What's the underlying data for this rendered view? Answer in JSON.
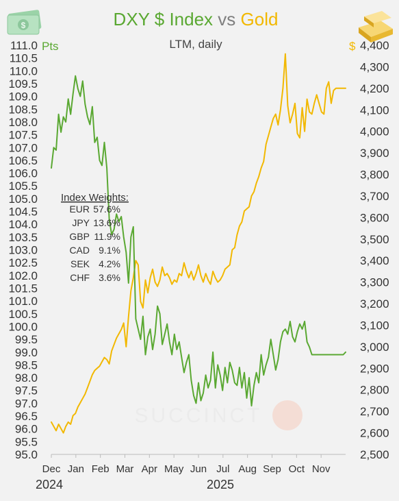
{
  "chart_data": {
    "type": "line",
    "title_parts": [
      {
        "text": "DXY $ Index",
        "color": "#5aa832"
      },
      {
        "text": " vs ",
        "color": "#7f7f7f"
      },
      {
        "text": "Gold",
        "color": "#f2b800"
      }
    ],
    "subtitle": "LTM, daily",
    "left_axis": {
      "unit_label": "Pts",
      "range": [
        95.0,
        111.0
      ],
      "ticks": [
        "95.0",
        "95.5",
        "96.0",
        "96.5",
        "97.0",
        "97.5",
        "98.0",
        "98.5",
        "99.0",
        "99.5",
        "100.0",
        "100.5",
        "101.0",
        "101.5",
        "102.0",
        "102.5",
        "103.0",
        "103.5",
        "104.0",
        "104.5",
        "105.0",
        "105.5",
        "106.0",
        "106.5",
        "107.0",
        "107.5",
        "108.0",
        "108.5",
        "109.0",
        "109.5",
        "110.0",
        "110.5",
        "111.0"
      ]
    },
    "right_axis": {
      "unit_label": "$",
      "range": [
        2500,
        4400
      ],
      "ticks": [
        "2,500",
        "2,600",
        "2,700",
        "2,800",
        "2,900",
        "3,000",
        "3,100",
        "3,200",
        "3,300",
        "3,400",
        "3,500",
        "3,600",
        "3,700",
        "3,800",
        "3,900",
        "4,000",
        "4,100",
        "4,200",
        "4,300",
        "4,400"
      ]
    },
    "x_axis": {
      "months": [
        "Dec",
        "Jan",
        "Feb",
        "Mar",
        "Apr",
        "May",
        "Jun",
        "Jul",
        "Aug",
        "Sep",
        "Oct",
        "Nov"
      ],
      "years": [
        "2024",
        "2025"
      ]
    },
    "series": [
      {
        "name": "DXY $ Index",
        "axis": "left",
        "color": "#5aa832",
        "x": [
          0,
          3,
          6,
          9,
          12,
          15,
          18,
          21,
          24,
          27,
          30,
          33,
          36,
          39,
          42,
          45,
          48,
          51,
          54,
          57,
          60,
          63,
          66,
          69,
          72,
          75,
          78,
          81,
          84,
          87,
          90,
          93,
          96,
          99,
          102,
          105,
          108,
          111,
          114,
          117,
          120,
          123,
          126,
          129,
          132,
          135,
          138,
          141,
          144,
          147,
          150,
          153,
          156,
          159,
          162,
          165,
          168,
          171,
          174,
          177,
          180,
          183,
          186,
          189,
          192,
          195,
          198,
          201,
          204,
          207,
          210,
          213,
          216,
          219,
          222,
          225,
          228,
          231,
          234,
          237,
          240,
          243,
          246,
          249,
          252,
          255,
          258,
          261,
          264,
          267,
          270,
          273,
          276,
          279,
          282,
          285,
          288,
          291,
          294,
          297,
          300,
          303,
          306,
          309,
          312,
          315,
          318,
          321,
          324,
          327,
          330,
          333,
          336,
          339,
          342,
          345,
          348,
          351,
          354,
          357,
          360,
          363,
          366
        ],
        "y": [
          106.2,
          107.0,
          106.9,
          108.3,
          107.6,
          108.2,
          108.0,
          108.9,
          108.3,
          109.1,
          109.8,
          109.3,
          109.0,
          109.6,
          108.7,
          108.2,
          107.9,
          108.6,
          107.2,
          107.4,
          106.5,
          106.3,
          107.2,
          106.2,
          104.2,
          103.6,
          103.8,
          104.4,
          104.1,
          104.3,
          103.5,
          102.9,
          101.7,
          103.5,
          103.9,
          100.3,
          99.9,
          99.5,
          100.4,
          98.9,
          99.6,
          99.9,
          99.1,
          99.7,
          100.8,
          100.5,
          99.3,
          99.7,
          100.1,
          99.4,
          98.9,
          99.7,
          99.1,
          99.4,
          98.8,
          98.2,
          98.6,
          98.9,
          97.9,
          97.3,
          97.0,
          97.8,
          97.1,
          97.4,
          98.1,
          97.6,
          97.9,
          99.0,
          97.6,
          98.5,
          98.1,
          97.5,
          98.4,
          97.8,
          98.6,
          98.3,
          97.8,
          97.7,
          98.4,
          97.6,
          98.2,
          97.2,
          98.0,
          96.9,
          97.7,
          98.2,
          97.8,
          98.9,
          98.1,
          98.5,
          98.8,
          99.5,
          98.9,
          98.3,
          98.7,
          99.4,
          99.8,
          99.9,
          99.7,
          100.2,
          99.6,
          99.4,
          99.8,
          100.1,
          99.9,
          100.2,
          99.4,
          99.2,
          98.9,
          98.9,
          98.9,
          98.9,
          98.9,
          98.9,
          98.9,
          98.9,
          98.9,
          98.9,
          98.9,
          98.9,
          98.9,
          98.9,
          99.0
        ]
      },
      {
        "name": "Gold",
        "axis": "right",
        "color": "#f2b800",
        "x": [
          0,
          3,
          6,
          9,
          12,
          15,
          18,
          21,
          24,
          27,
          30,
          33,
          36,
          39,
          42,
          45,
          48,
          51,
          54,
          57,
          60,
          63,
          66,
          69,
          72,
          75,
          78,
          81,
          84,
          87,
          90,
          93,
          96,
          99,
          102,
          105,
          108,
          111,
          114,
          117,
          120,
          123,
          126,
          129,
          132,
          135,
          138,
          141,
          144,
          147,
          150,
          153,
          156,
          159,
          162,
          165,
          168,
          171,
          174,
          177,
          180,
          183,
          186,
          189,
          192,
          195,
          198,
          201,
          204,
          207,
          210,
          213,
          216,
          219,
          222,
          225,
          228,
          231,
          234,
          237,
          240,
          243,
          246,
          249,
          252,
          255,
          258,
          261,
          264,
          267,
          270,
          273,
          276,
          279,
          282,
          285,
          288,
          291,
          294,
          297,
          300,
          303,
          306,
          309,
          312,
          315,
          318,
          321,
          324,
          327,
          330,
          333,
          336,
          339,
          342,
          345,
          348,
          351,
          354,
          357,
          360,
          363,
          366
        ],
        "y": [
          2650,
          2630,
          2610,
          2640,
          2620,
          2600,
          2630,
          2650,
          2640,
          2680,
          2690,
          2720,
          2740,
          2760,
          2780,
          2810,
          2840,
          2870,
          2890,
          2900,
          2910,
          2930,
          2950,
          2940,
          2920,
          2980,
          3010,
          3040,
          3060,
          3080,
          3110,
          3000,
          3140,
          3260,
          3320,
          3400,
          3380,
          3210,
          3180,
          3310,
          3250,
          3320,
          3360,
          3300,
          3280,
          3310,
          3370,
          3330,
          3340,
          3320,
          3290,
          3310,
          3300,
          3340,
          3330,
          3390,
          3350,
          3320,
          3350,
          3310,
          3340,
          3380,
          3330,
          3300,
          3340,
          3310,
          3290,
          3350,
          3320,
          3300,
          3310,
          3330,
          3360,
          3370,
          3380,
          3450,
          3460,
          3520,
          3560,
          3580,
          3630,
          3640,
          3650,
          3700,
          3720,
          3760,
          3790,
          3830,
          3860,
          3940,
          3980,
          4020,
          4060,
          4080,
          4030,
          4100,
          4200,
          4360,
          4120,
          4040,
          4080,
          4130,
          3990,
          3970,
          4110,
          4000,
          4150,
          4090,
          4080,
          4130,
          4170,
          4130,
          4090,
          4080,
          4200,
          4230,
          4130,
          4190,
          4200,
          4200,
          4200,
          4200,
          4200
        ]
      }
    ]
  },
  "annotation": {
    "title": "Index Weights:",
    "rows": [
      {
        "ccy": "EUR",
        "pct": "57.6%"
      },
      {
        "ccy": "JPY",
        "pct": "13.6%"
      },
      {
        "ccy": "GBP",
        "pct": "11.9%"
      },
      {
        "ccy": "CAD",
        "pct": "9.1%"
      },
      {
        "ccy": "SEK",
        "pct": "4.2%"
      },
      {
        "ccy": "CHF",
        "pct": "3.6%"
      }
    ]
  },
  "watermark": "SUCCINCT"
}
